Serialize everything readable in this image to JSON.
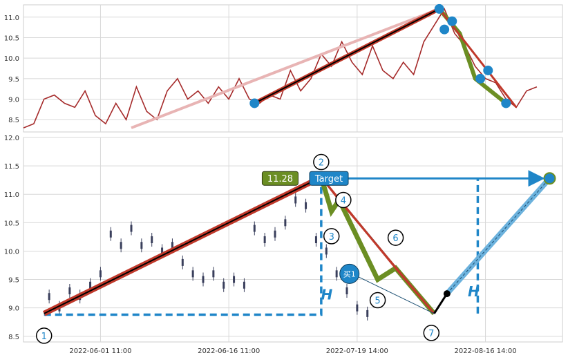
{
  "chart_data": [
    {
      "type": "line",
      "panel": "top",
      "ylim": [
        8.2,
        11.3
      ],
      "yticks": [
        "11.0",
        "10.5",
        "10.0",
        "9.5",
        "9.0",
        "8.5"
      ],
      "ytick_values": [
        11.0,
        10.5,
        10.0,
        9.5,
        9.0,
        8.5
      ],
      "grid": true,
      "x_index_range": [
        0,
        200
      ],
      "series": [
        {
          "color": "#a52a2a",
          "x": [
            0,
            4,
            8,
            12,
            16,
            20,
            24,
            28,
            32,
            36,
            40,
            44,
            48,
            52,
            56,
            60,
            64,
            68,
            72,
            76,
            80,
            84,
            88,
            92,
            96,
            100,
            104,
            108,
            112,
            116,
            120,
            124,
            128,
            132,
            136,
            140,
            144,
            148,
            152,
            156,
            160,
            164,
            168,
            172,
            176,
            180,
            184,
            188,
            192,
            196,
            200
          ],
          "values": [
            8.3,
            8.4,
            9.0,
            9.1,
            8.9,
            8.8,
            9.2,
            8.6,
            8.4,
            8.9,
            8.5,
            9.3,
            8.7,
            8.5,
            9.2,
            9.5,
            9.0,
            9.2,
            8.9,
            9.3,
            9.0,
            9.5,
            9.0,
            8.9,
            9.1,
            9.0,
            9.7,
            9.2,
            9.5,
            10.1,
            9.8,
            10.4,
            9.9,
            9.6,
            10.3,
            9.7,
            9.5,
            9.9,
            9.6,
            10.4,
            10.8,
            11.2,
            10.6,
            10.3,
            9.8,
            9.5,
            9.4,
            9.0,
            8.8,
            9.2,
            9.3
          ]
        }
      ]
    },
    {
      "type": "scatter",
      "panel": "bottom",
      "ylim": [
        8.4,
        12.0
      ],
      "yticks": [
        "12.0",
        "11.5",
        "11.0",
        "10.5",
        "10.0",
        "9.5",
        "9.0",
        "8.5"
      ],
      "ytick_values": [
        12.0,
        11.5,
        11.0,
        10.5,
        10.0,
        9.5,
        9.0,
        8.5
      ],
      "xticks": [
        "2022-06-01 11:00",
        "2022-06-16 11:00",
        "2022-07-19 14:00",
        "2022-08-16 14:00"
      ],
      "xtick_index": [
        30,
        80,
        130,
        180
      ],
      "grid": true,
      "price_points": [
        {
          "x": 10,
          "y": 9.2
        },
        {
          "x": 14,
          "y": 9.0
        },
        {
          "x": 18,
          "y": 9.3
        },
        {
          "x": 22,
          "y": 9.2
        },
        {
          "x": 26,
          "y": 9.4
        },
        {
          "x": 30,
          "y": 9.6
        },
        {
          "x": 34,
          "y": 10.3
        },
        {
          "x": 38,
          "y": 10.1
        },
        {
          "x": 42,
          "y": 10.4
        },
        {
          "x": 46,
          "y": 10.1
        },
        {
          "x": 50,
          "y": 10.2
        },
        {
          "x": 54,
          "y": 10.0
        },
        {
          "x": 58,
          "y": 10.1
        },
        {
          "x": 62,
          "y": 9.8
        },
        {
          "x": 66,
          "y": 9.6
        },
        {
          "x": 70,
          "y": 9.5
        },
        {
          "x": 74,
          "y": 9.6
        },
        {
          "x": 78,
          "y": 9.4
        },
        {
          "x": 82,
          "y": 9.5
        },
        {
          "x": 86,
          "y": 9.4
        },
        {
          "x": 90,
          "y": 10.4
        },
        {
          "x": 94,
          "y": 10.2
        },
        {
          "x": 98,
          "y": 10.3
        },
        {
          "x": 102,
          "y": 10.5
        },
        {
          "x": 106,
          "y": 10.9
        },
        {
          "x": 110,
          "y": 10.8
        },
        {
          "x": 114,
          "y": 10.2
        },
        {
          "x": 118,
          "y": 10.0
        },
        {
          "x": 122,
          "y": 9.6
        },
        {
          "x": 126,
          "y": 9.3
        },
        {
          "x": 130,
          "y": 9.0
        },
        {
          "x": 134,
          "y": 8.9
        }
      ],
      "pattern_points": [
        {
          "label": "1",
          "x": 8,
          "y": 8.9
        },
        {
          "label": "2",
          "x": 116,
          "y": 11.3
        },
        {
          "label": "3",
          "x": 120,
          "y": 10.7
        },
        {
          "label": "4",
          "x": 123,
          "y": 10.9
        },
        {
          "label": "5",
          "x": 138,
          "y": 9.5
        },
        {
          "label": "6",
          "x": 145,
          "y": 9.7
        },
        {
          "label": "7",
          "x": 160,
          "y": 8.9
        }
      ],
      "projection": {
        "start_x": 165,
        "start_y": 9.25,
        "end_x": 205,
        "end_y": 11.28
      },
      "target_value": "11.28",
      "target_label": "Target",
      "buy_label": "买1",
      "h_label": "H"
    }
  ],
  "colors": {
    "price": "#a52a2a",
    "trend": "#c0392b",
    "pattern": "#6b8e23",
    "accent": "#1f86c8",
    "target_box": "#6b8e23",
    "grid": "#d8d8d8"
  }
}
